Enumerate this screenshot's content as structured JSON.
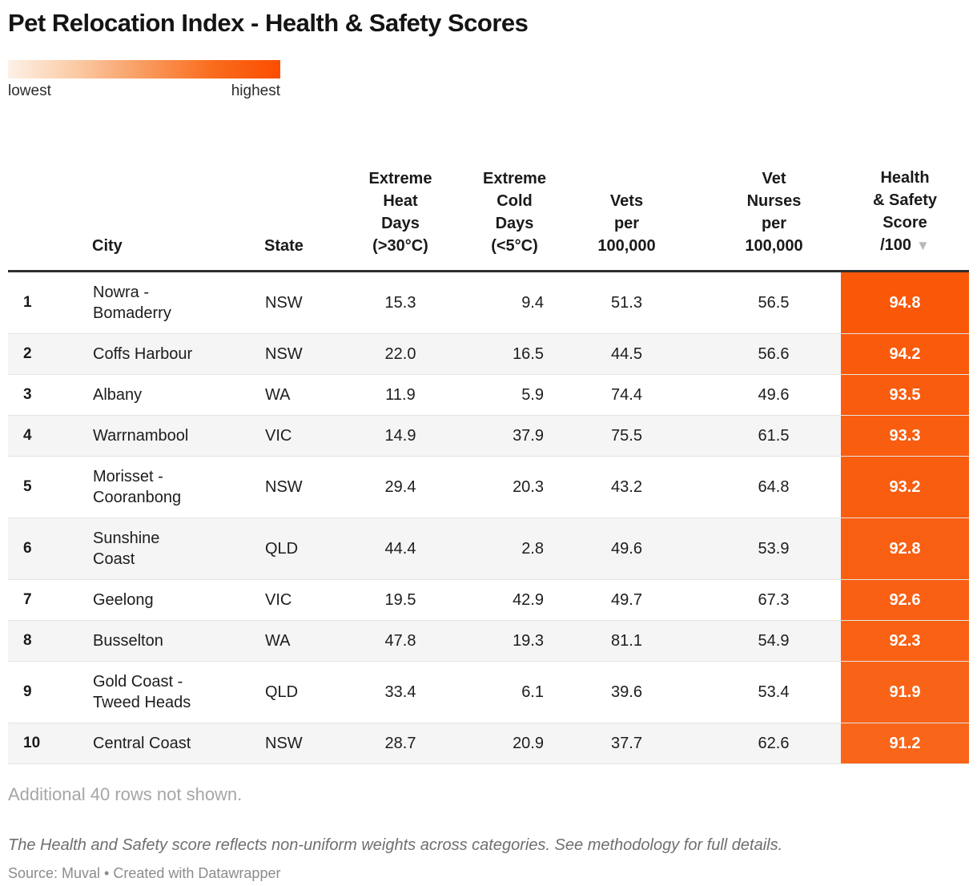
{
  "title": "Pet Relocation Index - Health & Safety Scores",
  "legend": {
    "lowest_label": "lowest",
    "highest_label": "highest",
    "gradient_colors": [
      "#fdf1e7",
      "#fbcaa5",
      "#f99b5e",
      "#fa6c1e",
      "#fb4d00"
    ]
  },
  "table": {
    "columns": {
      "city": "City",
      "state": "State",
      "heat": "Extreme\nHeat\nDays\n(>30°C)",
      "cold": "Extreme\nCold\nDays\n(<5°C)",
      "vets": "Vets\nper\n100,000",
      "nurses": "Vet\nNurses\nper\n100,000",
      "score": "Health\n& Safety\nScore\n/100"
    },
    "sort_icon": "▼",
    "rows": [
      {
        "rank": "1",
        "city": "Nowra -\nBomaderry",
        "state": "NSW",
        "heat": "15.3",
        "cold": "9.4",
        "vets": "51.3",
        "nurses": "56.5",
        "score": "94.8",
        "score_color": "#f95809"
      },
      {
        "rank": "2",
        "city": "Coffs Harbour",
        "state": "NSW",
        "heat": "22.0",
        "cold": "16.5",
        "vets": "44.5",
        "nurses": "56.6",
        "score": "94.2",
        "score_color": "#f95a0b"
      },
      {
        "rank": "3",
        "city": "Albany",
        "state": "WA",
        "heat": "11.9",
        "cold": "5.9",
        "vets": "74.4",
        "nurses": "49.6",
        "score": "93.5",
        "score_color": "#f95c0e"
      },
      {
        "rank": "4",
        "city": "Warrnambool",
        "state": "VIC",
        "heat": "14.9",
        "cold": "37.9",
        "vets": "75.5",
        "nurses": "61.5",
        "score": "93.3",
        "score_color": "#f95d0f"
      },
      {
        "rank": "5",
        "city": "Morisset -\nCooranbong",
        "state": "NSW",
        "heat": "29.4",
        "cold": "20.3",
        "vets": "43.2",
        "nurses": "64.8",
        "score": "93.2",
        "score_color": "#f95d10"
      },
      {
        "rank": "6",
        "city": "Sunshine\nCoast",
        "state": "QLD",
        "heat": "44.4",
        "cold": "2.8",
        "vets": "49.6",
        "nurses": "53.9",
        "score": "92.8",
        "score_color": "#f95f12"
      },
      {
        "rank": "7",
        "city": "Geelong",
        "state": "VIC",
        "heat": "19.5",
        "cold": "42.9",
        "vets": "49.7",
        "nurses": "67.3",
        "score": "92.6",
        "score_color": "#f96013"
      },
      {
        "rank": "8",
        "city": "Busselton",
        "state": "WA",
        "heat": "47.8",
        "cold": "19.3",
        "vets": "81.1",
        "nurses": "54.9",
        "score": "92.3",
        "score_color": "#f96114"
      },
      {
        "rank": "9",
        "city": "Gold Coast -\nTweed Heads",
        "state": "QLD",
        "heat": "33.4",
        "cold": "6.1",
        "vets": "39.6",
        "nurses": "53.4",
        "score": "91.9",
        "score_color": "#f96317"
      },
      {
        "rank": "10",
        "city": "Central Coast",
        "state": "NSW",
        "heat": "28.7",
        "cold": "20.9",
        "vets": "37.7",
        "nurses": "62.6",
        "score": "91.2",
        "score_color": "#f96519"
      }
    ]
  },
  "footer": {
    "additional_rows_note": "Additional 40 rows not shown.",
    "methodology_note": "The Health and Safety score reflects non-uniform weights across categories. See methodology for full details.",
    "source_line": "Source: Muval • Created with Datawrapper"
  },
  "colors": {
    "accent_orange": "#fb4d00",
    "header_border": "#2e2e2e",
    "zebra_row": "#f5f5f5",
    "row_border": "#e4e4e4"
  }
}
